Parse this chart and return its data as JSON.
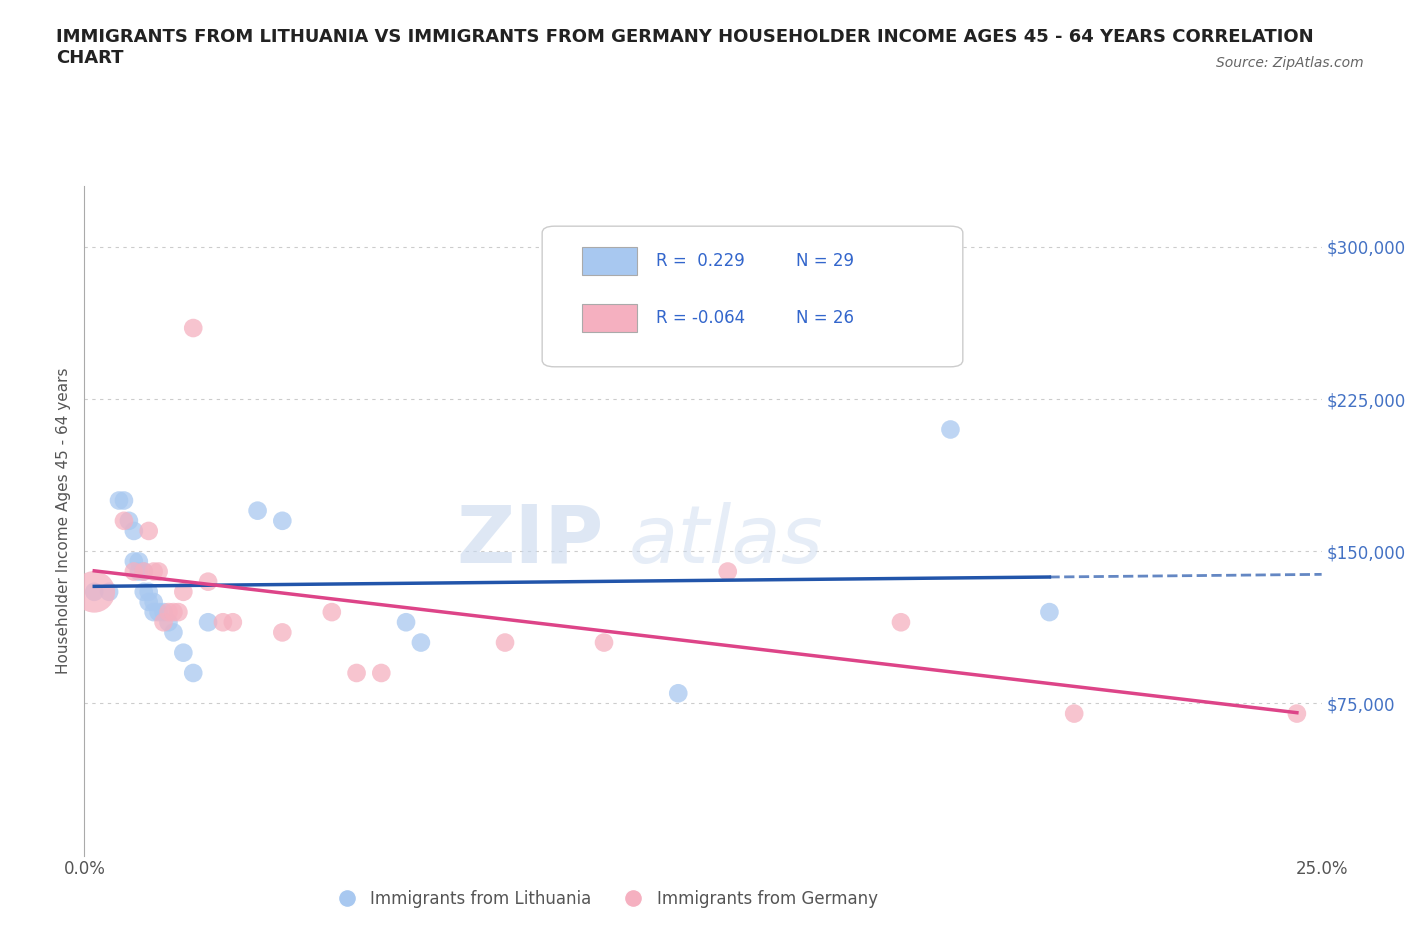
{
  "title": "IMMIGRANTS FROM LITHUANIA VS IMMIGRANTS FROM GERMANY HOUSEHOLDER INCOME AGES 45 - 64 YEARS CORRELATION\nCHART",
  "source": "Source: ZipAtlas.com",
  "ylabel": "Householder Income Ages 45 - 64 years",
  "xlim": [
    0,
    0.25
  ],
  "ylim": [
    0,
    330000
  ],
  "xticks": [
    0.0,
    0.025,
    0.05,
    0.075,
    0.1,
    0.125,
    0.15,
    0.175,
    0.2,
    0.225,
    0.25
  ],
  "ytick_positions": [
    0,
    75000,
    150000,
    225000,
    300000
  ],
  "ytick_labels": [
    "",
    "$75,000",
    "$150,000",
    "$225,000",
    "$300,000"
  ],
  "grid_color": "#cccccc",
  "background_color": "#ffffff",
  "lithuania_color": "#a8c8f0",
  "germany_color": "#f5b0c0",
  "lithuania_line_color": "#2255aa",
  "germany_line_color": "#dd4488",
  "r_lithuania": 0.229,
  "n_lithuania": 29,
  "r_germany": -0.064,
  "n_germany": 26,
  "legend_labels": [
    "Immigrants from Lithuania",
    "Immigrants from Germany"
  ],
  "watermark_zip": "ZIP",
  "watermark_atlas": "atlas",
  "lithuania_x": [
    0.002,
    0.005,
    0.007,
    0.008,
    0.009,
    0.01,
    0.01,
    0.011,
    0.011,
    0.012,
    0.012,
    0.013,
    0.013,
    0.014,
    0.014,
    0.015,
    0.016,
    0.017,
    0.018,
    0.02,
    0.022,
    0.025,
    0.035,
    0.04,
    0.065,
    0.068,
    0.12,
    0.175,
    0.195
  ],
  "lithuania_y": [
    130000,
    130000,
    175000,
    175000,
    165000,
    160000,
    145000,
    145000,
    140000,
    140000,
    130000,
    130000,
    125000,
    125000,
    120000,
    120000,
    120000,
    115000,
    110000,
    100000,
    90000,
    115000,
    170000,
    165000,
    115000,
    105000,
    80000,
    210000,
    120000
  ],
  "germany_x": [
    0.002,
    0.008,
    0.01,
    0.012,
    0.013,
    0.014,
    0.015,
    0.016,
    0.017,
    0.018,
    0.019,
    0.02,
    0.022,
    0.025,
    0.028,
    0.03,
    0.04,
    0.05,
    0.055,
    0.06,
    0.085,
    0.105,
    0.13,
    0.165,
    0.2,
    0.245
  ],
  "germany_y": [
    130000,
    165000,
    140000,
    140000,
    160000,
    140000,
    140000,
    115000,
    120000,
    120000,
    120000,
    130000,
    260000,
    135000,
    115000,
    115000,
    110000,
    120000,
    90000,
    90000,
    105000,
    105000,
    140000,
    115000,
    70000,
    70000
  ],
  "dot_size_default": 180,
  "dot_size_large": 900,
  "germany_large_idx": 0
}
